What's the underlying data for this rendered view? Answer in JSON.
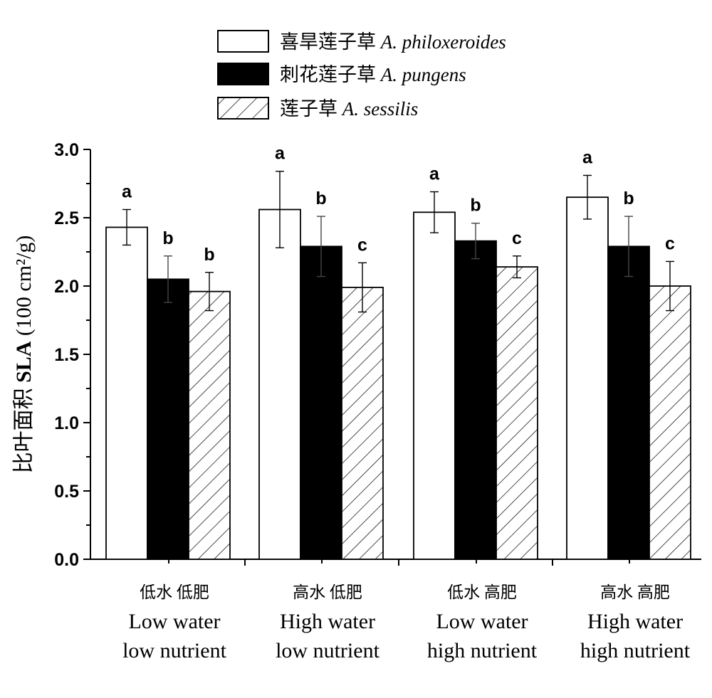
{
  "chart_data": {
    "type": "bar",
    "ylabel_cn": "比叶面积",
    "ylabel_en": "SLA",
    "ylabel_unit": "(100 cm²/g)",
    "ylim": [
      0,
      3.0
    ],
    "yticks": [
      "0.0",
      "0.5",
      "1.0",
      "1.5",
      "2.0",
      "2.5",
      "3.0"
    ],
    "grid": false,
    "legend_position": "top",
    "categories": [
      {
        "cn": "低水  低肥",
        "en1": "Low water",
        "en2": "low nutrient"
      },
      {
        "cn": "高水  低肥",
        "en1": "High water",
        "en2": "low nutrient"
      },
      {
        "cn": "低水  高肥",
        "en1": "Low water",
        "en2": "high nutrient"
      },
      {
        "cn": "高水  高肥",
        "en1": "High water",
        "en2": "high nutrient"
      }
    ],
    "series": [
      {
        "name_cn": "喜旱莲子草",
        "name_en": "A. philoxeroides",
        "fill": "white",
        "values": [
          2.43,
          2.56,
          2.54,
          2.65
        ],
        "errors": [
          0.13,
          0.28,
          0.15,
          0.16
        ],
        "letters": [
          "a",
          "a",
          "a",
          "a"
        ]
      },
      {
        "name_cn": "刺花莲子草",
        "name_en": "A. pungens",
        "fill": "black",
        "values": [
          2.05,
          2.29,
          2.33,
          2.29
        ],
        "errors": [
          0.17,
          0.22,
          0.13,
          0.22
        ],
        "letters": [
          "b",
          "b",
          "b",
          "b"
        ]
      },
      {
        "name_cn": "莲子草",
        "name_en": "A. sessilis",
        "fill": "hatch",
        "values": [
          1.96,
          1.99,
          2.14,
          2.0
        ],
        "errors": [
          0.14,
          0.18,
          0.08,
          0.18
        ],
        "letters": [
          "b",
          "c",
          "c",
          "c"
        ]
      }
    ]
  }
}
